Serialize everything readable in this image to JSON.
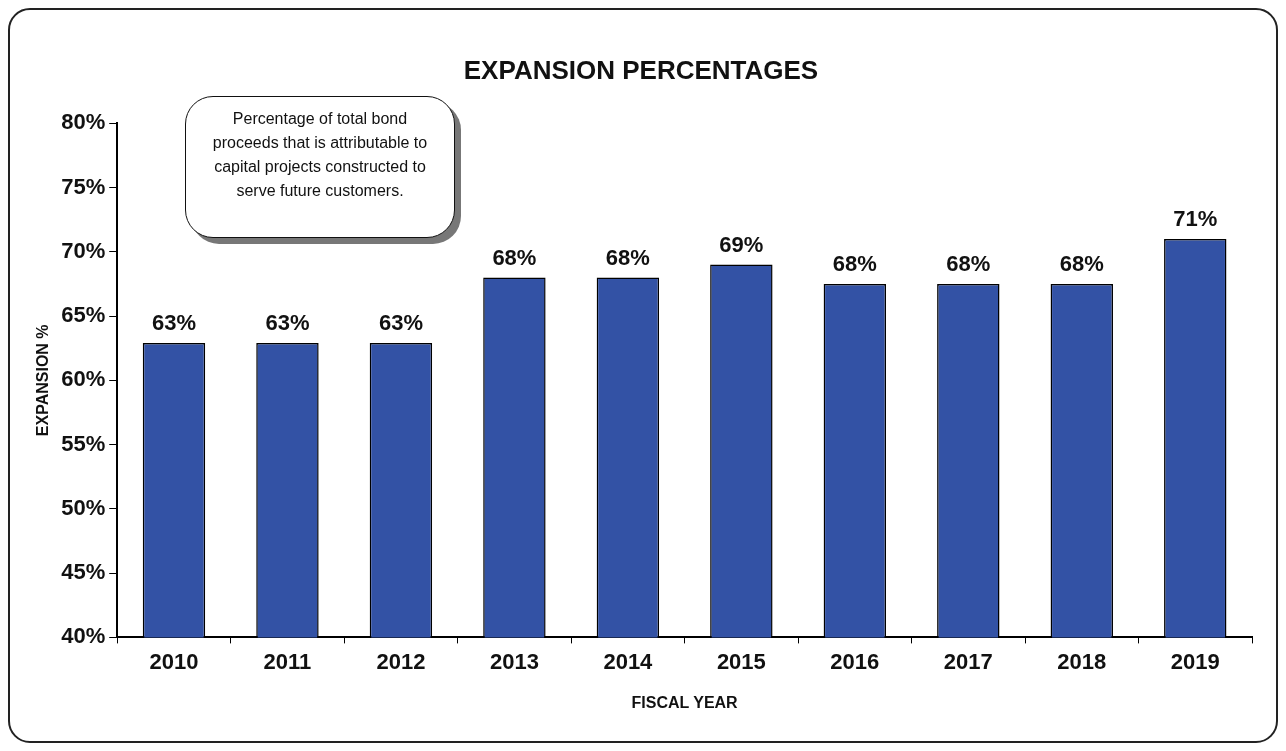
{
  "chart_data": {
    "type": "bar",
    "title": "EXPANSION PERCENTAGES",
    "xlabel": "FISCAL YEAR",
    "ylabel": "EXPANSION %",
    "categories": [
      "2010",
      "2011",
      "2012",
      "2013",
      "2014",
      "2015",
      "2016",
      "2017",
      "2018",
      "2019"
    ],
    "values": [
      62.9,
      62.9,
      62.9,
      68,
      68,
      69,
      67.5,
      67.5,
      67.5,
      71
    ],
    "value_labels": [
      "63%",
      "63%",
      "63%",
      "68%",
      "68%",
      "69%",
      "68%",
      "68%",
      "68%",
      "71%"
    ],
    "color": "#3352a5",
    "ylim": [
      40,
      80
    ],
    "yticks": [
      {
        "value": 40,
        "label": "40%"
      },
      {
        "value": 45,
        "label": "45%"
      },
      {
        "value": 50,
        "label": "50%"
      },
      {
        "value": 55,
        "label": "55%"
      },
      {
        "value": 60,
        "label": "60%"
      },
      {
        "value": 65,
        "label": "65%"
      },
      {
        "value": 70,
        "label": "70%"
      },
      {
        "value": 75,
        "label": "75%"
      },
      {
        "value": 80,
        "label": "80%"
      }
    ],
    "grid": false,
    "legend": false,
    "annotations": [
      "Percentage of total bond proceeds that is attributable to capital projects constructed to serve future customers."
    ]
  }
}
